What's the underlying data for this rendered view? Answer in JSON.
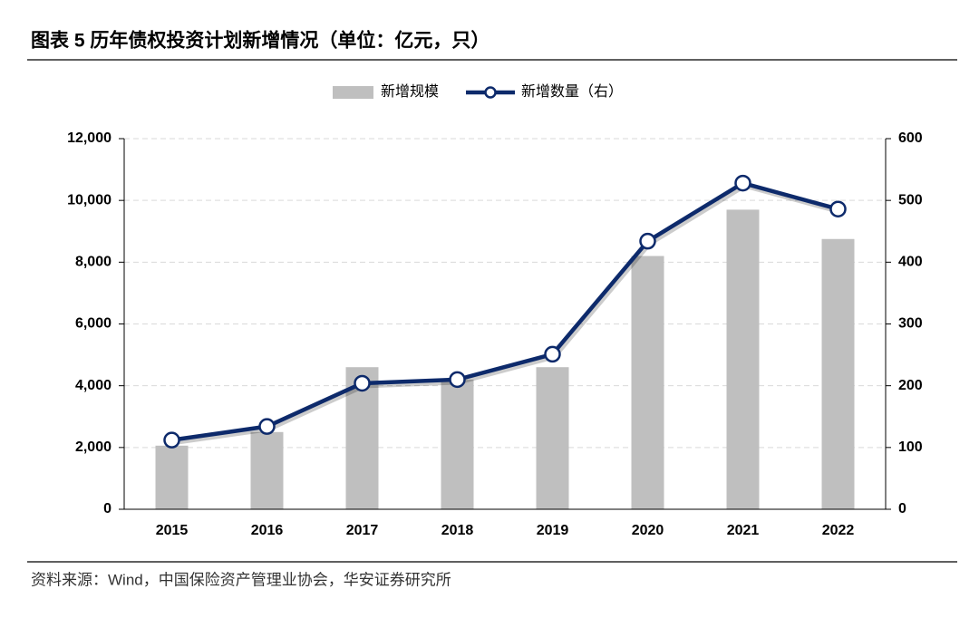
{
  "chart_data": {
    "type": "combo",
    "title": "图表 5  历年债权投资计划新增情况（单位：亿元，只）",
    "source": "资料来源：Wind，中国保险资产管理业协会，华安证券研究所",
    "categories": [
      "2015",
      "2016",
      "2017",
      "2018",
      "2019",
      "2020",
      "2021",
      "2022"
    ],
    "series": [
      {
        "name": "新增规模",
        "type": "bar",
        "color": "#bfbfbf",
        "values": [
          2060,
          2500,
          4600,
          4200,
          4600,
          8200,
          9700,
          8750
        ]
      },
      {
        "name": "新增数量（右）",
        "type": "line",
        "axis": "y2",
        "color": "#0d2a6b",
        "values": [
          112,
          134,
          204,
          210,
          251,
          434,
          528,
          486
        ]
      }
    ],
    "ylim": [
      0,
      12000
    ],
    "yticks": [
      0,
      {
        "value": 2000,
        "label": "2,000"
      },
      {
        "value": 4000,
        "label": "4,000"
      },
      {
        "value": 6000,
        "label": "6,000"
      },
      {
        "value": 8000,
        "label": "8,000"
      },
      {
        "value": 10000,
        "label": "10,000"
      },
      {
        "value": 12000,
        "label": "12,000"
      }
    ],
    "y2lim": [
      0,
      600
    ],
    "y2ticks": [
      0,
      100,
      200,
      300,
      400,
      500,
      600
    ],
    "grid": true,
    "legend": "top"
  }
}
